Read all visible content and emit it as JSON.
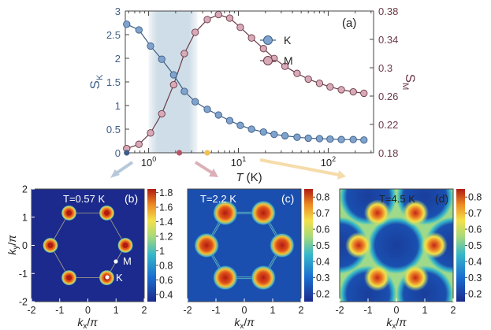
{
  "colors": {
    "k_fill": "#7fa3cc",
    "k_line": "#3f5f88",
    "m_fill": "#d8a9b7",
    "m_line": "#6b3b48",
    "band": "#c9d9e4",
    "axis": "#444444",
    "marker_2_2": "#b85565",
    "marker_4_5": "#f2c14e",
    "arrow_1": "#b7c8da",
    "arrow_2": "#dcb0b8",
    "arrow_3": "#f5dcaa"
  },
  "chart_data": [
    {
      "panel": "(a)",
      "type": "line",
      "xscale": "log",
      "xlim": [
        0.55,
        320
      ],
      "x_ticks": [
        "10^0",
        "10^1",
        "10^2"
      ],
      "xlabel": "T (K)",
      "ylabel_left": "S_K",
      "ylabel_right": "S_M",
      "ylim_left": [
        0,
        3
      ],
      "yticks_left": [
        "0",
        "0.5",
        "1",
        "1.5",
        "2",
        "2.5",
        "3"
      ],
      "ylim_right": [
        0.18,
        0.38
      ],
      "yticks_right": [
        "0.18",
        "0.22",
        "0.26",
        "0.3",
        "0.34",
        "0.38"
      ],
      "shaded_T_range": [
        1.0,
        3.5
      ],
      "highlighted_T": [
        0.57,
        2.2,
        4.5
      ],
      "legend": [
        "K",
        "M"
      ],
      "series": [
        {
          "name": "K",
          "axis": "left",
          "x": [
            0.57,
            0.78,
            1.05,
            1.4,
            1.9,
            2.5,
            3.3,
            4.5,
            6,
            8,
            10.5,
            14,
            19,
            25,
            33,
            45,
            60,
            80,
            105,
            140,
            190,
            250
          ],
          "values": [
            2.72,
            2.6,
            2.26,
            1.98,
            1.65,
            1.3,
            1.08,
            0.92,
            0.8,
            0.68,
            0.58,
            0.5,
            0.44,
            0.39,
            0.36,
            0.33,
            0.31,
            0.3,
            0.29,
            0.28,
            0.28,
            0.27
          ]
        },
        {
          "name": "M",
          "axis": "right",
          "x": [
            0.57,
            0.78,
            1.05,
            1.4,
            1.9,
            2.5,
            3.3,
            4.5,
            6,
            8,
            10.5,
            14,
            19,
            25,
            33,
            45,
            60,
            80,
            105,
            140,
            190,
            250
          ],
          "values": [
            0.186,
            0.192,
            0.208,
            0.235,
            0.276,
            0.32,
            0.35,
            0.368,
            0.375,
            0.37,
            0.357,
            0.342,
            0.327,
            0.313,
            0.302,
            0.292,
            0.284,
            0.278,
            0.273,
            0.269,
            0.266,
            0.264
          ]
        }
      ]
    },
    {
      "panel": "(b)",
      "type": "heatmap",
      "label": "T=0.57 K",
      "xlabel": "kx/π",
      "ylabel": "ky/π",
      "xlim": [
        -2,
        2
      ],
      "ylim": [
        -2,
        2
      ],
      "xticks": [
        "-2",
        "-1",
        "0",
        "1",
        "2"
      ],
      "yticks": [
        "2",
        "1",
        "0",
        "-1",
        "-2"
      ],
      "colorbar_ticks": [
        "1.8",
        "1.6",
        "1.4",
        "1.2",
        "1",
        "0.8",
        "0.6",
        "0.4"
      ],
      "points": [
        "M",
        "K"
      ]
    },
    {
      "panel": "(c)",
      "type": "heatmap",
      "label": "T=2.2 K",
      "xlabel": "kx/π",
      "xlim": [
        -2,
        2
      ],
      "xticks": [
        "-2",
        "-1",
        "0",
        "1",
        "2"
      ],
      "colorbar_ticks": [
        "0.8",
        "0.7",
        "0.6",
        "0.5",
        "0.4",
        "0.3",
        "0.2"
      ]
    },
    {
      "panel": "(d)",
      "type": "heatmap",
      "label": "T=4.5 K",
      "xlabel": "kx/π",
      "xlim": [
        -2,
        2
      ],
      "xticks": [
        "-2",
        "-1",
        "0",
        "1",
        "2"
      ],
      "colorbar_ticks": [
        "0.8",
        "0.7",
        "0.6",
        "0.5",
        "0.4",
        "0.3",
        "0.2"
      ]
    }
  ]
}
